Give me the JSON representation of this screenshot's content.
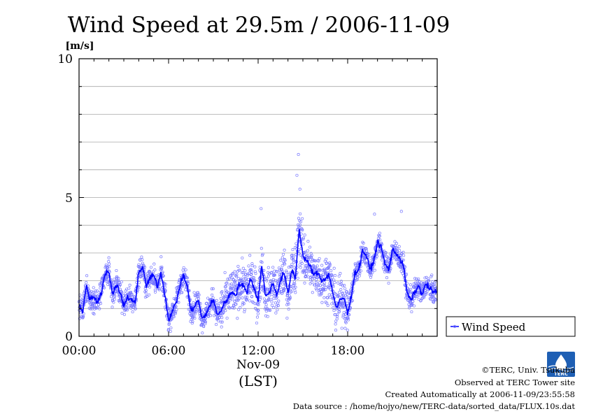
{
  "chart_data": {
    "type": "line",
    "title": "Wind Speed at 29.5m / 2006-11-09",
    "ylabel": "[m/s]",
    "xlabel": "(LST)",
    "date_label": "Nov-09",
    "ylim": [
      0,
      10
    ],
    "xlim": [
      "00:00",
      "24:00"
    ],
    "y_ticks": [
      "0",
      "5",
      "10"
    ],
    "x_ticks": [
      "00:00",
      "06:00",
      "12:00",
      "18:00"
    ],
    "grid": true,
    "legend": {
      "position": "right-bottom",
      "entries": [
        "Wind Speed"
      ]
    },
    "series": [
      {
        "name": "Wind Speed",
        "color": "#0000ff",
        "scatter_color": "#7878ff",
        "x_hours": [
          0,
          0.25,
          0.5,
          0.75,
          1,
          1.25,
          1.5,
          1.75,
          2,
          2.25,
          2.5,
          2.75,
          3,
          3.25,
          3.5,
          3.75,
          4,
          4.25,
          4.5,
          4.75,
          5,
          5.25,
          5.5,
          5.75,
          6,
          6.25,
          6.5,
          6.75,
          7,
          7.25,
          7.5,
          7.75,
          8,
          8.25,
          8.5,
          8.75,
          9,
          9.25,
          9.5,
          9.75,
          10,
          10.25,
          10.5,
          10.75,
          11,
          11.25,
          11.5,
          11.75,
          12,
          12.25,
          12.5,
          12.75,
          13,
          13.25,
          13.5,
          13.75,
          14,
          14.25,
          14.5,
          14.75,
          15,
          15.25,
          15.5,
          15.75,
          16,
          16.25,
          16.5,
          16.75,
          17,
          17.25,
          17.5,
          17.75,
          18,
          18.25,
          18.5,
          18.75,
          19,
          19.25,
          19.5,
          19.75,
          20,
          20.25,
          20.5,
          20.75,
          21,
          21.25,
          21.5,
          21.75,
          22,
          22.25,
          22.5,
          22.75,
          23,
          23.25,
          23.5,
          23.75
        ],
        "values": [
          1.1,
          0.9,
          1.8,
          1.3,
          1.4,
          1.2,
          1.6,
          2.2,
          2.3,
          1.5,
          1.9,
          1.6,
          1.1,
          1.4,
          1.3,
          1.2,
          2.3,
          2.5,
          1.8,
          2.1,
          2.2,
          1.8,
          2.3,
          1.5,
          0.6,
          0.9,
          1.2,
          1.8,
          2.2,
          1.8,
          0.9,
          1.1,
          1.3,
          0.6,
          0.8,
          1.1,
          1.3,
          0.8,
          0.9,
          1.2,
          1.4,
          1.6,
          1.5,
          1.9,
          1.8,
          1.6,
          2.1,
          1.7,
          1.3,
          2.6,
          1.4,
          1.6,
          1.9,
          1.5,
          2.0,
          2.3,
          1.5,
          2.4,
          2.1,
          3.9,
          2.9,
          2.7,
          2.5,
          2.2,
          2.3,
          2.0,
          2.1,
          2.2,
          1.6,
          1.0,
          1.3,
          1.4,
          0.8,
          1.5,
          2.3,
          2.4,
          3.1,
          2.9,
          2.4,
          2.7,
          3.4,
          3.2,
          2.6,
          2.4,
          3.1,
          3.0,
          2.8,
          2.5,
          1.5,
          1.3,
          1.6,
          1.8,
          1.5,
          1.9,
          1.7,
          1.6
        ]
      }
    ]
  },
  "footer": {
    "copyright": "©TERC, Univ. Tsukuba",
    "observed": "Observed at TERC Tower site",
    "created": "Created Automatically at 2006-11-09/23:55:58",
    "source": "Data source : /home/hojyo/new/TERC-data/sorted_data/FLUX.10s.dat"
  },
  "logo": {
    "label": "TERC"
  }
}
